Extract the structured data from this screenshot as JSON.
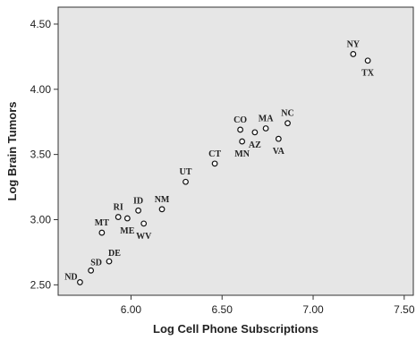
{
  "chart_data": {
    "type": "scatter",
    "title": "",
    "xlabel": "Log Cell Phone Subscriptions",
    "ylabel": "Log Brain Tumors",
    "xlim": [
      5.6,
      7.55
    ],
    "ylim": [
      2.42,
      4.63
    ],
    "x_ticks": [
      "6.00",
      "6.50",
      "7.00",
      "7.50"
    ],
    "y_ticks": [
      "2.50",
      "3.00",
      "3.50",
      "4.00",
      "4.50"
    ],
    "grid": false,
    "plot_background": "#e6e6e6",
    "marker": "hollow-circle",
    "points": [
      {
        "label": "ND",
        "x": 5.72,
        "y": 2.52,
        "pos": "tl"
      },
      {
        "label": "SD",
        "x": 5.78,
        "y": 2.61,
        "pos": "tr"
      },
      {
        "label": "DE",
        "x": 5.88,
        "y": 2.68,
        "pos": "tr"
      },
      {
        "label": "MT",
        "x": 5.84,
        "y": 2.9,
        "pos": "t"
      },
      {
        "label": "RI",
        "x": 5.93,
        "y": 3.02,
        "pos": "t"
      },
      {
        "label": "ME",
        "x": 5.98,
        "y": 3.01,
        "pos": "b"
      },
      {
        "label": "ID",
        "x": 6.04,
        "y": 3.07,
        "pos": "t"
      },
      {
        "label": "WV",
        "x": 6.07,
        "y": 2.97,
        "pos": "b"
      },
      {
        "label": "NM",
        "x": 6.17,
        "y": 3.08,
        "pos": "t"
      },
      {
        "label": "UT",
        "x": 6.3,
        "y": 3.29,
        "pos": "t"
      },
      {
        "label": "CT",
        "x": 6.46,
        "y": 3.43,
        "pos": "t"
      },
      {
        "label": "CO",
        "x": 6.6,
        "y": 3.69,
        "pos": "t"
      },
      {
        "label": "MN",
        "x": 6.61,
        "y": 3.6,
        "pos": "b"
      },
      {
        "label": "AZ",
        "x": 6.68,
        "y": 3.67,
        "pos": "b"
      },
      {
        "label": "MA",
        "x": 6.74,
        "y": 3.7,
        "pos": "t"
      },
      {
        "label": "VA",
        "x": 6.81,
        "y": 3.62,
        "pos": "b"
      },
      {
        "label": "NC",
        "x": 6.86,
        "y": 3.74,
        "pos": "t"
      },
      {
        "label": "NY",
        "x": 7.22,
        "y": 4.27,
        "pos": "t"
      },
      {
        "label": "TX",
        "x": 7.3,
        "y": 4.22,
        "pos": "b"
      }
    ]
  }
}
